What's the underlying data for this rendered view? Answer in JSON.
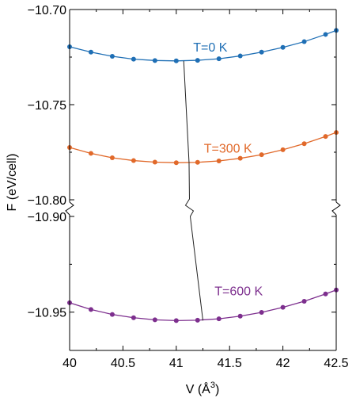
{
  "chart_data": {
    "type": "line",
    "title": "",
    "xlabel": "V (Å",
    "xlabel_superscript": "3",
    "xlabel_close": ")",
    "ylabel": "F (eV/cell)",
    "xlim": [
      40.0,
      42.5
    ],
    "broken_y_axis": true,
    "ylim_upper_panel": [
      -10.8,
      -10.7
    ],
    "ylim_lower_panel": [
      -10.97,
      -10.9
    ],
    "x_ticks": [
      40.0,
      40.5,
      41.0,
      41.5,
      42.0,
      42.5
    ],
    "x_tick_labels": [
      "40",
      "40.5",
      "41",
      "41.5",
      "42",
      "42.5"
    ],
    "y_ticks_upper_panel": [
      -10.7,
      -10.75,
      -10.8
    ],
    "y_tick_labels_upper_panel": [
      "−10.70",
      "−10.75",
      "−10.80"
    ],
    "y_ticks_lower_panel": [
      -10.9,
      -10.95
    ],
    "y_tick_labels_lower_panel": [
      "−10.90",
      "−10.95"
    ],
    "x": [
      40.0,
      40.2,
      40.4,
      40.6,
      40.8,
      41.0,
      41.2,
      41.4,
      41.6,
      41.8,
      42.0,
      42.2,
      42.4
    ],
    "series": [
      {
        "name": "T=0 K",
        "color": "#1f6fb5",
        "panel": "upper",
        "values": [
          -10.7196,
          -10.7224,
          -10.7246,
          -10.7261,
          -10.7268,
          -10.727,
          -10.7267,
          -10.7259,
          -10.7244,
          -10.7224,
          -10.7199,
          -10.7169,
          -10.7131
        ]
      },
      {
        "name": "T=300 K",
        "color": "#e1692a",
        "panel": "upper",
        "values": [
          -10.7725,
          -10.7756,
          -10.7779,
          -10.7794,
          -10.7802,
          -10.7805,
          -10.7803,
          -10.7796,
          -10.7782,
          -10.7763,
          -10.7737,
          -10.7705,
          -10.7667
        ]
      },
      {
        "name": "T=600 K",
        "color": "#7d2f8e",
        "panel": "lower",
        "values": [
          -10.9451,
          -10.9486,
          -10.9512,
          -10.9529,
          -10.954,
          -10.9544,
          -10.9542,
          -10.9535,
          -10.9521,
          -10.9501,
          -10.9475,
          -10.9443,
          -10.9405
        ]
      }
    ],
    "minimum_path": {
      "color": "#222222",
      "points": [
        {
          "x": 41.07,
          "y": -10.727,
          "panel": "upper"
        },
        {
          "x": 41.12,
          "y": -10.7805,
          "panel": "upper"
        },
        {
          "x": 41.25,
          "y": -10.9544,
          "panel": "lower"
        }
      ]
    },
    "grid": false,
    "legend": "inline labels next to curves"
  }
}
